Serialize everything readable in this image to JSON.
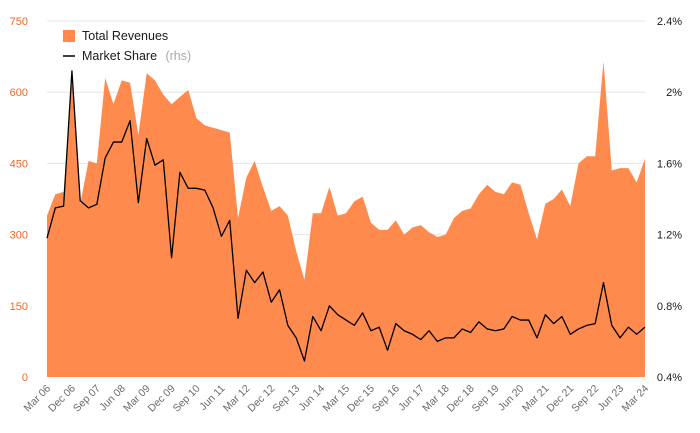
{
  "chart_data": {
    "type": "area",
    "legend": {
      "placement": "top-left",
      "items": [
        {
          "label": "Total Revenues",
          "note": ""
        },
        {
          "label": "Market Share",
          "note": "(rhs)"
        }
      ]
    },
    "grid": true,
    "colors": {
      "revenues": "#ff8a4d",
      "market_share": "#000000",
      "left_axis_text": "#f26522",
      "right_axis_text": "#1a1a1a"
    },
    "x_start": "Mar 06",
    "x_end": "Mar 24",
    "x_frequency": "quarterly",
    "x_tick_labels": [
      "Mar 06",
      "Dec 06",
      "Sep 07",
      "Jun 08",
      "Mar 09",
      "Dec 09",
      "Sep 10",
      "Jun 11",
      "Mar 12",
      "Dec 12",
      "Sep 13",
      "Jun 14",
      "Mar 15",
      "Dec 15",
      "Sep 16",
      "Jun 17",
      "Mar 18",
      "Dec 18",
      "Sep 19",
      "Jun 20",
      "Mar 21",
      "Dec 21",
      "Sep 22",
      "Jun 23",
      "Mar 24"
    ],
    "y_left": {
      "min": 0,
      "max": 750,
      "ticks": [
        "0",
        "150",
        "300",
        "450",
        "600",
        "750"
      ]
    },
    "y_right": {
      "min": 0.004,
      "max": 0.024,
      "ticks": [
        "0.4%",
        "0.8%",
        "1.2%",
        "1.6%",
        "2%",
        "2.4%"
      ]
    },
    "series": [
      {
        "name": "Total Revenues",
        "axis": "left",
        "values": [
          340,
          385,
          390,
          625,
          365,
          455,
          450,
          630,
          575,
          625,
          620,
          510,
          640,
          625,
          595,
          575,
          590,
          605,
          545,
          530,
          525,
          520,
          515,
          335,
          420,
          455,
          400,
          350,
          360,
          340,
          265,
          205,
          345,
          345,
          400,
          340,
          345,
          370,
          380,
          325,
          310,
          310,
          330,
          300,
          315,
          320,
          305,
          295,
          300,
          335,
          350,
          355,
          385,
          405,
          390,
          385,
          410,
          405,
          345,
          290,
          365,
          375,
          395,
          360,
          450,
          465,
          465,
          665,
          435,
          440,
          440,
          410,
          460
        ]
      },
      {
        "name": "Market Share",
        "axis": "right",
        "values": [
          0.0118,
          0.0135,
          0.0136,
          0.0212,
          0.0139,
          0.0135,
          0.0137,
          0.0163,
          0.0172,
          0.0172,
          0.0184,
          0.0138,
          0.0174,
          0.0159,
          0.0162,
          0.0107,
          0.0155,
          0.0146,
          0.0146,
          0.0145,
          0.0135,
          0.0119,
          0.0128,
          0.0073,
          0.01,
          0.0093,
          0.0099,
          0.0082,
          0.0089,
          0.0069,
          0.0062,
          0.0049,
          0.0074,
          0.0066,
          0.008,
          0.0075,
          0.0072,
          0.0069,
          0.0076,
          0.0066,
          0.0068,
          0.0055,
          0.007,
          0.0066,
          0.0064,
          0.0061,
          0.0066,
          0.006,
          0.0062,
          0.0062,
          0.0067,
          0.0065,
          0.0071,
          0.0067,
          0.0066,
          0.0067,
          0.0074,
          0.0072,
          0.0072,
          0.0062,
          0.0075,
          0.007,
          0.0074,
          0.0064,
          0.0067,
          0.0069,
          0.007,
          0.0093,
          0.0069,
          0.0062,
          0.0068,
          0.0064,
          0.0068
        ]
      }
    ]
  }
}
